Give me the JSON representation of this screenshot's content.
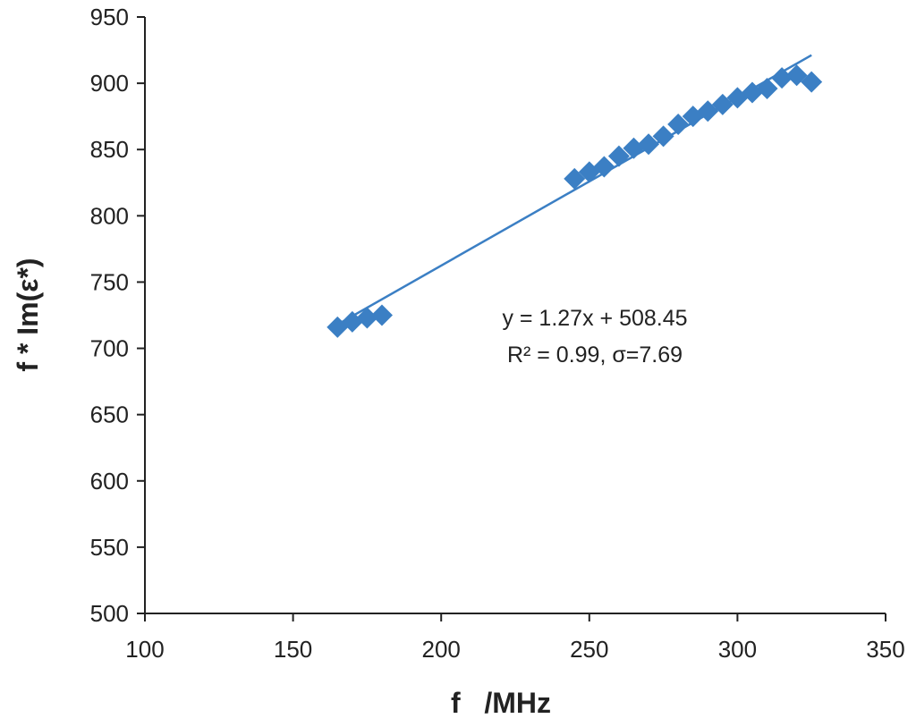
{
  "chart_data": {
    "type": "scatter",
    "xlabel": "f   /MHz",
    "ylabel": "f * Im(ε*)",
    "xlim": [
      100,
      350
    ],
    "ylim": [
      500,
      950
    ],
    "x_ticks": [
      100,
      150,
      200,
      250,
      300,
      350
    ],
    "y_ticks": [
      500,
      550,
      600,
      650,
      700,
      750,
      800,
      850,
      900,
      950
    ],
    "grid": false,
    "legend": "none",
    "marker": "diamond",
    "series": [
      {
        "color": "#3b7fc4",
        "points": [
          {
            "x": 165,
            "y": 716
          },
          {
            "x": 170,
            "y": 720
          },
          {
            "x": 175,
            "y": 723
          },
          {
            "x": 180,
            "y": 725
          },
          {
            "x": 245,
            "y": 828
          },
          {
            "x": 250,
            "y": 833
          },
          {
            "x": 255,
            "y": 837
          },
          {
            "x": 260,
            "y": 845
          },
          {
            "x": 265,
            "y": 851
          },
          {
            "x": 270,
            "y": 854
          },
          {
            "x": 275,
            "y": 860
          },
          {
            "x": 280,
            "y": 869
          },
          {
            "x": 285,
            "y": 875
          },
          {
            "x": 290,
            "y": 879
          },
          {
            "x": 295,
            "y": 884
          },
          {
            "x": 300,
            "y": 889
          },
          {
            "x": 305,
            "y": 893
          },
          {
            "x": 310,
            "y": 896
          },
          {
            "x": 315,
            "y": 904
          },
          {
            "x": 320,
            "y": 906
          },
          {
            "x": 325,
            "y": 901
          }
        ]
      }
    ],
    "trendline": {
      "slope": 1.27,
      "intercept": 508.45,
      "x_range": [
        165,
        325
      ],
      "color": "#3b7fc4"
    },
    "annotations": [
      "y = 1.27x + 508.45",
      "R² = 0.99, σ=7.69"
    ]
  }
}
